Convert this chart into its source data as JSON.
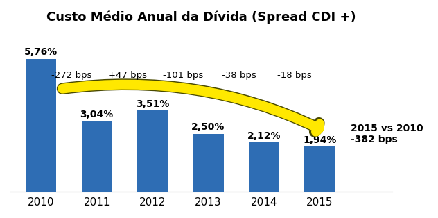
{
  "title": "Custo Médio Anual da Dívida (Spread CDI +)",
  "categories": [
    "2010",
    "2011",
    "2012",
    "2013",
    "2014",
    "2015"
  ],
  "values": [
    5.76,
    3.04,
    3.51,
    2.5,
    2.12,
    1.94
  ],
  "labels": [
    "5,76%",
    "3,04%",
    "3,51%",
    "2,50%",
    "2,12%",
    "1,94%"
  ],
  "bar_color": "#2E6DB4",
  "bps_labels": [
    "-272 bps",
    "+47 bps",
    "-101 bps",
    "-38 bps",
    "-18 bps"
  ],
  "bps_x": [
    1,
    2,
    3,
    4,
    5
  ],
  "arrow_label": "2015 vs 2010\n-382 bps",
  "ylim": [
    0,
    7.0
  ],
  "background_color": "#FFFFFF",
  "title_fontsize": 13,
  "label_fontsize": 10,
  "tick_fontsize": 11,
  "bps_fontsize": 9.5,
  "arrow_label_fontsize": 10
}
